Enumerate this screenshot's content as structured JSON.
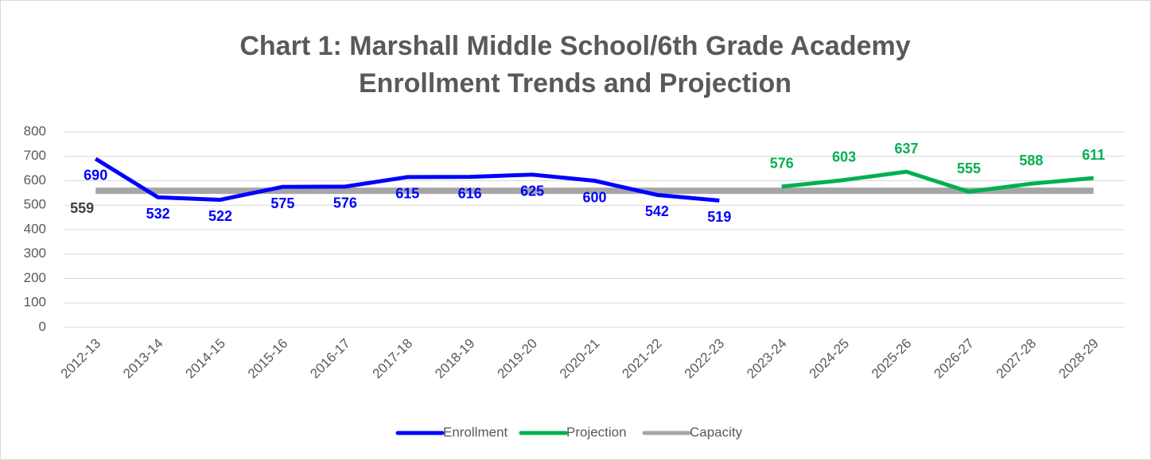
{
  "chart_data": {
    "type": "line",
    "title": [
      "Chart 1: Marshall Middle School/6th Grade Academy",
      "Enrollment Trends and Projection"
    ],
    "categories": [
      "2012-13",
      "2013-14",
      "2014-15",
      "2015-16",
      "2016-17",
      "2017-18",
      "2018-19",
      "2019-20",
      "2020-21",
      "2021-22",
      "2022-23",
      "2023-24",
      "2024-25",
      "2025-26",
      "2026-27",
      "2027-28",
      "2028-29"
    ],
    "series": [
      {
        "name": "Enrollment",
        "color": "#0000ff",
        "label_position": "below",
        "values": [
          690,
          532,
          522,
          575,
          576,
          615,
          616,
          625,
          600,
          542,
          519,
          null,
          null,
          null,
          null,
          null,
          null
        ]
      },
      {
        "name": "Projection",
        "color": "#00b050",
        "label_position": "above",
        "values": [
          null,
          null,
          null,
          null,
          null,
          null,
          null,
          null,
          null,
          null,
          null,
          576,
          603,
          637,
          555,
          588,
          611
        ]
      },
      {
        "name": "Capacity",
        "color": "#a6a6a6",
        "label_position": "below-left",
        "data_labels": "first",
        "values": [
          559,
          559,
          559,
          559,
          559,
          559,
          559,
          559,
          559,
          559,
          559,
          559,
          559,
          559,
          559,
          559,
          559
        ]
      }
    ],
    "ylim": [
      0,
      800
    ],
    "yticks": [
      0,
      100,
      200,
      300,
      400,
      500,
      600,
      700,
      800
    ],
    "grid": true,
    "legend": "bottom"
  }
}
